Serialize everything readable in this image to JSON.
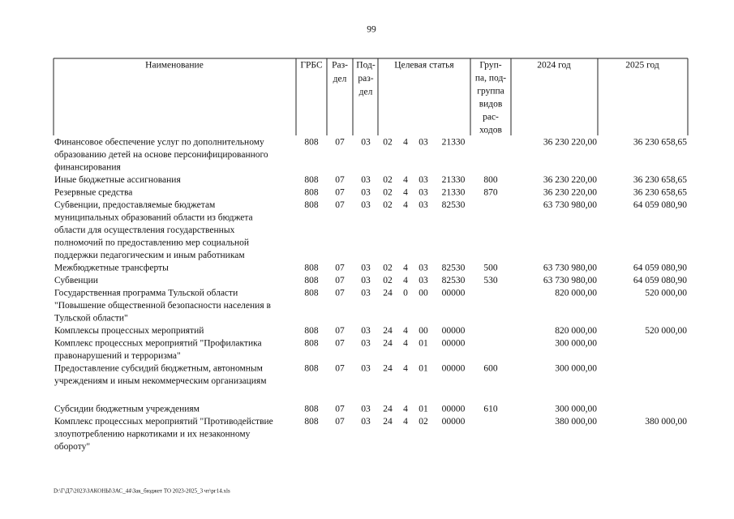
{
  "page_number": "99",
  "header": {
    "name": "Наименование",
    "grbs": "ГРБС",
    "razdel": [
      "Раз-",
      "дел"
    ],
    "podrazdel": [
      "Под-",
      "раз-",
      "дел"
    ],
    "target": "Целевая статья",
    "group": [
      "Груп-",
      "па, под-",
      "группа",
      "видов",
      "рас-",
      "ходов"
    ],
    "y2024": "2024 год",
    "y2025": "2025 год"
  },
  "rows": [
    {
      "name": [
        "Финансовое обеспечение услуг по дополнительному",
        "образованию детей на основе персонифицированного",
        "финансирования"
      ],
      "grbs": "808",
      "razdel": "07",
      "podrazdel": "03",
      "target": [
        "02",
        "4",
        "03",
        "21330"
      ],
      "group": null,
      "y2024": "36 230 220,00",
      "y2025": "36 230 658,65"
    },
    {
      "name": [
        "Иные бюджетные ассигнования"
      ],
      "grbs": "808",
      "razdel": "07",
      "podrazdel": "03",
      "target": [
        "02",
        "4",
        "03",
        "21330"
      ],
      "group": "800",
      "y2024": "36 230 220,00",
      "y2025": "36 230 658,65"
    },
    {
      "name": [
        "Резервные средства"
      ],
      "grbs": "808",
      "razdel": "07",
      "podrazdel": "03",
      "target": [
        "02",
        "4",
        "03",
        "21330"
      ],
      "group": "870",
      "y2024": "36 230 220,00",
      "y2025": "36 230 658,65"
    },
    {
      "name": [
        "Субвенции, предоставляемые бюджетам",
        "муниципальных образований области из бюджета",
        "области для осуществления государственных",
        "полномочий по предоставлению мер социальной",
        "поддержки педагогическим и иным работникам"
      ],
      "grbs": "808",
      "razdel": "07",
      "podrazdel": "03",
      "target": [
        "02",
        "4",
        "03",
        "82530"
      ],
      "group": null,
      "y2024": "63 730 980,00",
      "y2025": "64 059 080,90"
    },
    {
      "name": [
        "Межбюджетные трансферты"
      ],
      "grbs": "808",
      "razdel": "07",
      "podrazdel": "03",
      "target": [
        "02",
        "4",
        "03",
        "82530"
      ],
      "group": "500",
      "y2024": "63 730 980,00",
      "y2025": "64 059 080,90"
    },
    {
      "name": [
        "Субвенции"
      ],
      "grbs": "808",
      "razdel": "07",
      "podrazdel": "03",
      "target": [
        "02",
        "4",
        "03",
        "82530"
      ],
      "group": "530",
      "y2024": "63 730 980,00",
      "y2025": "64 059 080,90"
    },
    {
      "name": [
        "Государственная программа Тульской области",
        "\"Повышение общественной безопасности населения в",
        "Тульской области\""
      ],
      "grbs": "808",
      "razdel": "07",
      "podrazdel": "03",
      "target": [
        "24",
        "0",
        "00",
        "00000"
      ],
      "group": null,
      "y2024": "820 000,00",
      "y2025": "520 000,00"
    },
    {
      "name": [
        "Комплексы процессных мероприятий"
      ],
      "grbs": "808",
      "razdel": "07",
      "podrazdel": "03",
      "target": [
        "24",
        "4",
        "00",
        "00000"
      ],
      "group": null,
      "y2024": "820 000,00",
      "y2025": "520 000,00"
    },
    {
      "name": [
        "Комплекс процессных мероприятий \"Профилактика",
        "правонарушений и терроризма\""
      ],
      "grbs": "808",
      "razdel": "07",
      "podrazdel": "03",
      "target": [
        "24",
        "4",
        "01",
        "00000"
      ],
      "group": null,
      "y2024": "300 000,00",
      "y2025": null
    },
    {
      "name": [
        "Предоставление субсидий бюджетным, автономным",
        "учреждениям и иным некоммерческим организациям"
      ],
      "grbs": "808",
      "razdel": "07",
      "podrazdel": "03",
      "target": [
        "24",
        "4",
        "01",
        "00000"
      ],
      "group": "600",
      "y2024": "300 000,00",
      "y2025": null
    },
    {
      "name": [
        "Субсидии бюджетным учреждениям"
      ],
      "grbs": "808",
      "razdel": "07",
      "podrazdel": "03",
      "target": [
        "24",
        "4",
        "01",
        "00000"
      ],
      "group": "610",
      "y2024": "300 000,00",
      "y2025": null
    },
    {
      "name": [
        "Комплекс процессных мероприятий \"Противодействие",
        "злоупотреблению наркотиками и их незаконному",
        "обороту\""
      ],
      "grbs": "808",
      "razdel": "07",
      "podrazdel": "03",
      "target": [
        "24",
        "4",
        "02",
        "00000"
      ],
      "group": null,
      "y2024": "380 000,00",
      "y2025": "380 000,00"
    }
  ],
  "footer": "D:\\Г\\Д7\\2023\\ЗАКОНЫ\\ЗАС_44\\Зак_бюджет ТО 2023-2025_3 чт\\рг14.xls"
}
